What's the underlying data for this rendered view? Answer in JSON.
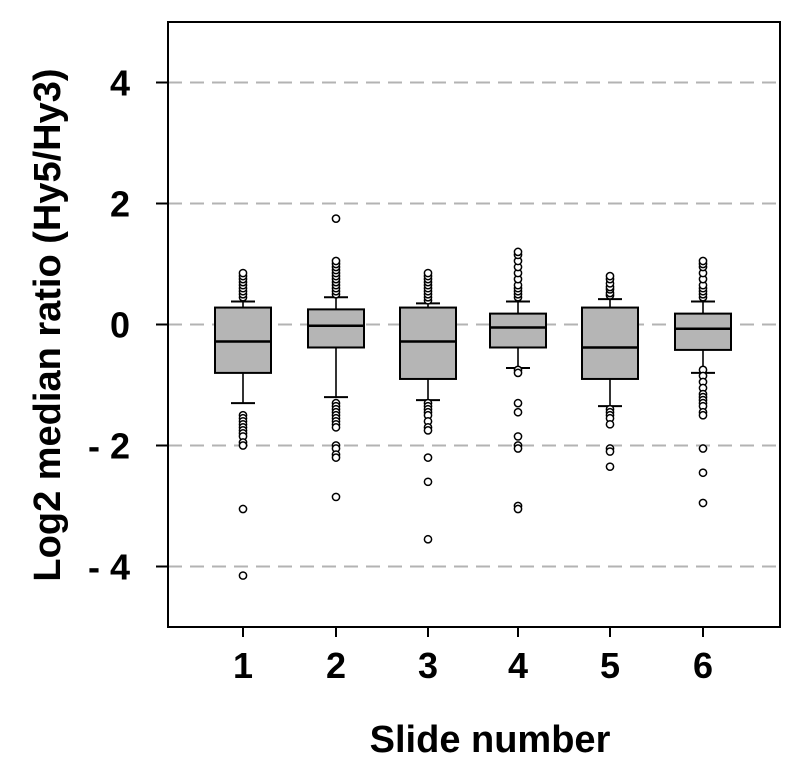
{
  "chart_data": {
    "type": "boxplot",
    "xlabel": "Slide number",
    "ylabel": "Log2 median ratio (Hy5/Hy3)",
    "ylim": [
      -5,
      5
    ],
    "yticks": [
      {
        "value": 4,
        "label": "4"
      },
      {
        "value": 2,
        "label": "2"
      },
      {
        "value": 0,
        "label": "0"
      },
      {
        "value": -2,
        "label": "- 2"
      },
      {
        "value": -4,
        "label": "- 4"
      }
    ],
    "grid": "horizontal dashed",
    "box_color": "#b5b5b5",
    "gridline_color": "#b3b3b3",
    "categories": [
      "1",
      "2",
      "3",
      "4",
      "5",
      "6"
    ],
    "boxes": [
      {
        "category": "1",
        "q1": -0.8,
        "median": -0.28,
        "q3": 0.28,
        "whisker_low": -1.3,
        "whisker_high": 0.38,
        "outliers": [
          0.45,
          0.5,
          0.55,
          0.6,
          0.65,
          0.7,
          0.75,
          0.8,
          0.85,
          -1.5,
          -1.55,
          -1.6,
          -1.65,
          -1.7,
          -1.75,
          -1.8,
          -1.85,
          -1.95,
          -2.0,
          -3.05,
          -4.15
        ]
      },
      {
        "category": "2",
        "q1": -0.38,
        "median": -0.02,
        "q3": 0.25,
        "whisker_low": -1.2,
        "whisker_high": 0.45,
        "outliers": [
          0.5,
          0.55,
          0.6,
          0.65,
          0.7,
          0.75,
          0.8,
          0.85,
          0.9,
          0.95,
          1.0,
          1.05,
          1.75,
          -1.3,
          -1.35,
          -1.4,
          -1.45,
          -1.5,
          -1.55,
          -1.6,
          -1.65,
          -1.7,
          -2.0,
          -2.05,
          -2.15,
          -2.2,
          -2.85
        ]
      },
      {
        "category": "3",
        "q1": -0.9,
        "median": -0.28,
        "q3": 0.28,
        "whisker_low": -1.25,
        "whisker_high": 0.35,
        "outliers": [
          0.4,
          0.45,
          0.5,
          0.55,
          0.6,
          0.65,
          0.7,
          0.75,
          0.8,
          0.85,
          -1.3,
          -1.35,
          -1.4,
          -1.45,
          -1.5,
          -1.6,
          -1.7,
          -1.75,
          -2.2,
          -2.6,
          -3.55
        ]
      },
      {
        "category": "4",
        "q1": -0.38,
        "median": -0.05,
        "q3": 0.18,
        "whisker_low": -0.72,
        "whisker_high": 0.38,
        "outliers": [
          0.45,
          0.5,
          0.55,
          0.6,
          0.65,
          0.75,
          0.85,
          0.95,
          1.05,
          1.15,
          1.2,
          -0.75,
          -0.8,
          -1.3,
          -1.45,
          -1.85,
          -2.0,
          -2.05,
          -3.0,
          -3.05
        ]
      },
      {
        "category": "5",
        "q1": -0.9,
        "median": -0.38,
        "q3": 0.28,
        "whisker_low": -1.35,
        "whisker_high": 0.42,
        "outliers": [
          0.48,
          0.52,
          0.58,
          0.62,
          0.68,
          0.75,
          0.8,
          -1.4,
          -1.45,
          -1.5,
          -1.55,
          -1.65,
          -2.05,
          -2.1,
          -2.35
        ]
      },
      {
        "category": "6",
        "q1": -0.42,
        "median": -0.07,
        "q3": 0.18,
        "whisker_low": -0.8,
        "whisker_high": 0.38,
        "outliers": [
          0.45,
          0.5,
          0.55,
          0.6,
          0.65,
          0.75,
          0.85,
          0.95,
          1.0,
          1.05,
          -0.75,
          -0.85,
          -0.95,
          -1.05,
          -1.15,
          -1.2,
          -1.25,
          -1.3,
          -1.35,
          -1.45,
          -1.5,
          -2.05,
          -2.45,
          -2.95
        ]
      }
    ]
  }
}
